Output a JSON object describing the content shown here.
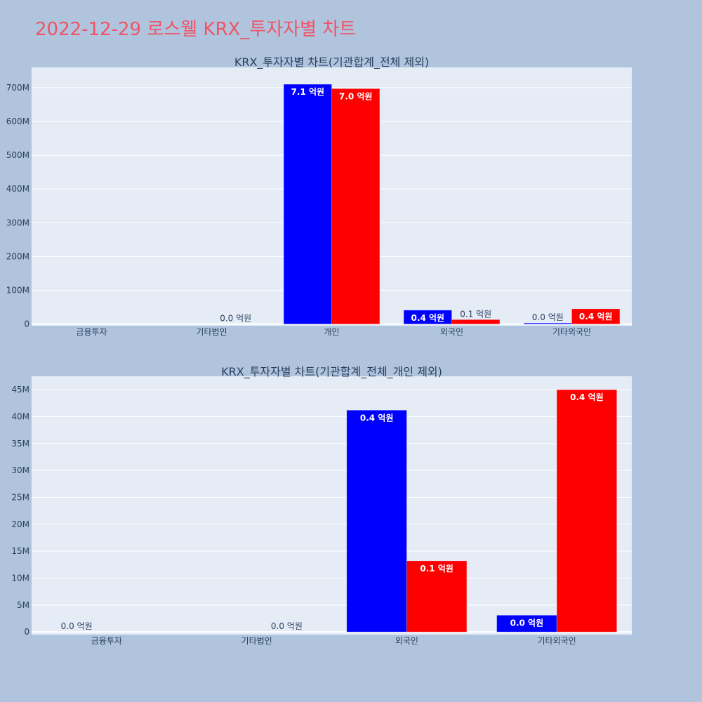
{
  "page_title": "2022-12-29 로스웰 KRX_투자자별 차트",
  "colors": {
    "background": "#b0c4de",
    "plot_background": "#e5ecf6",
    "title": "#ef5466",
    "text": "#2a3f5f",
    "buy": "#0000ff",
    "sell": "#ff0000"
  },
  "chart_data": [
    {
      "type": "bar",
      "title": "KRX_투자자별 차트(기관합계_전체 제외)",
      "categories": [
        "금융투자",
        "기타법인",
        "개인",
        "외국인",
        "기타외국인"
      ],
      "series": [
        {
          "color": "#0000ff",
          "values": [
            0,
            0,
            710000000,
            41000000,
            3000000
          ],
          "labels": [
            "",
            "",
            "7.1 억원",
            "0.4 억원",
            "0.0 억원"
          ]
        },
        {
          "color": "#ff0000",
          "values": [
            0,
            0,
            697000000,
            13000000,
            45000000
          ],
          "labels": [
            "",
            "0.0 억원",
            "7.0 억원",
            "0.1 억원",
            "0.4 억원"
          ]
        }
      ],
      "ylim": [
        -5000000,
        760000000
      ],
      "yticks": [
        0,
        100000000,
        200000000,
        300000000,
        400000000,
        500000000,
        600000000,
        700000000
      ],
      "ytick_labels": [
        "0",
        "100M",
        "200M",
        "300M",
        "400M",
        "500M",
        "600M",
        "700M"
      ],
      "grid": true
    },
    {
      "type": "bar",
      "title": "KRX_투자자별 차트(기관합계_전체_개인 제외)",
      "categories": [
        "금융투자",
        "기타법인",
        "외국인",
        "기타외국인"
      ],
      "series": [
        {
          "color": "#0000ff",
          "values": [
            0,
            0,
            41200000,
            3100000
          ],
          "labels": [
            "0.0 억원",
            "",
            "0.4 억원",
            "0.0 억원"
          ]
        },
        {
          "color": "#ff0000",
          "values": [
            0,
            0,
            13200000,
            45000000
          ],
          "labels": [
            "",
            "0.0 억원",
            "0.1 억원",
            "0.4 억원"
          ]
        }
      ],
      "ylim": [
        -500000,
        47500000
      ],
      "yticks": [
        0,
        5000000,
        10000000,
        15000000,
        20000000,
        25000000,
        30000000,
        35000000,
        40000000,
        45000000
      ],
      "ytick_labels": [
        "0",
        "5M",
        "10M",
        "15M",
        "20M",
        "25M",
        "30M",
        "35M",
        "40M",
        "45M"
      ],
      "grid": true
    }
  ]
}
